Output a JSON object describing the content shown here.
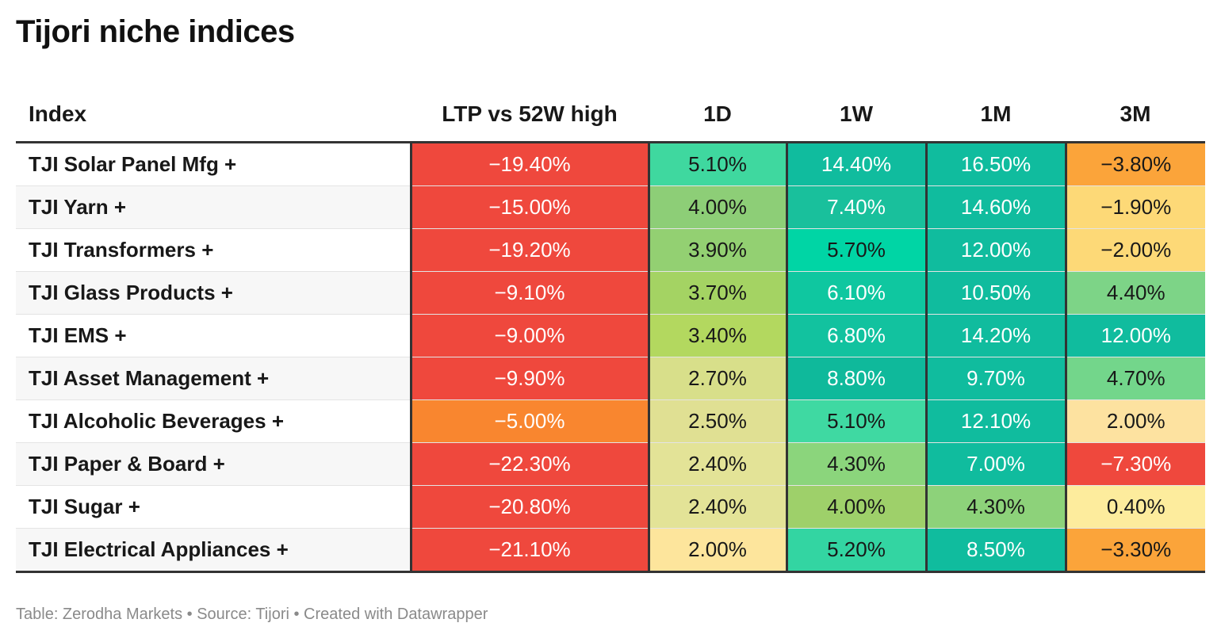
{
  "title": "Tijori niche indices",
  "footer": "Table: Zerodha Markets • Source: Tijori • Created with Datawrapper",
  "chart_data": {
    "type": "table",
    "columns": [
      "Index",
      "LTP vs 52W high",
      "1D",
      "1W",
      "1M",
      "3M"
    ],
    "rows": [
      {
        "index": "TJI Solar Panel Mfg +",
        "ltp": "−19.40%",
        "d1": "5.10%",
        "w1": "14.40%",
        "m1": "16.50%",
        "m3": "−3.80%"
      },
      {
        "index": "TJI Yarn +",
        "ltp": "−15.00%",
        "d1": "4.00%",
        "w1": "7.40%",
        "m1": "14.60%",
        "m3": "−1.90%"
      },
      {
        "index": "TJI Transformers +",
        "ltp": "−19.20%",
        "d1": "3.90%",
        "w1": "5.70%",
        "m1": "12.00%",
        "m3": "−2.00%"
      },
      {
        "index": "TJI Glass Products +",
        "ltp": "−9.10%",
        "d1": "3.70%",
        "w1": "6.10%",
        "m1": "10.50%",
        "m3": "4.40%"
      },
      {
        "index": "TJI EMS +",
        "ltp": "−9.00%",
        "d1": "3.40%",
        "w1": "6.80%",
        "m1": "14.20%",
        "m3": "12.00%"
      },
      {
        "index": "TJI Asset Management +",
        "ltp": "−9.90%",
        "d1": "2.70%",
        "w1": "8.80%",
        "m1": "9.70%",
        "m3": "4.70%"
      },
      {
        "index": "TJI Alcoholic Beverages +",
        "ltp": "−5.00%",
        "d1": "2.50%",
        "w1": "5.10%",
        "m1": "12.10%",
        "m3": "2.00%"
      },
      {
        "index": "TJI Paper & Board +",
        "ltp": "−22.30%",
        "d1": "2.40%",
        "w1": "4.30%",
        "m1": "7.00%",
        "m3": "−7.30%"
      },
      {
        "index": "TJI Sugar +",
        "ltp": "−20.80%",
        "d1": "2.40%",
        "w1": "4.00%",
        "m1": "4.30%",
        "m3": "0.40%"
      },
      {
        "index": "TJI Electrical Appliances +",
        "ltp": "−21.10%",
        "d1": "2.00%",
        "w1": "5.20%",
        "m1": "8.50%",
        "m3": "−3.30%"
      }
    ],
    "cell_colors": [
      [
        "#ef483d",
        "#3fd89f",
        "#10bc9e",
        "#10bc9e",
        "#fba43a"
      ],
      [
        "#ef483d",
        "#8dce77",
        "#19c09c",
        "#10bc9e",
        "#fdd977"
      ],
      [
        "#ef483d",
        "#93d072",
        "#00d5a5",
        "#10bc9e",
        "#fdd977"
      ],
      [
        "#ef483d",
        "#a4d363",
        "#0fc7a0",
        "#10bc9e",
        "#7dd487"
      ],
      [
        "#ef483d",
        "#b3d85f",
        "#12c29f",
        "#10bc9e",
        "#10bc9e"
      ],
      [
        "#ef483d",
        "#d8df8a",
        "#0fb99b",
        "#10bc9e",
        "#73d68b"
      ],
      [
        "#f9862f",
        "#e0e093",
        "#3fd9a2",
        "#10bc9e",
        "#fde2a0"
      ],
      [
        "#ef483d",
        "#e3e397",
        "#8bd57c",
        "#10bc9e",
        "#ef483d"
      ],
      [
        "#ef483d",
        "#e3e397",
        "#9ed06a",
        "#8dd27a",
        "#fdec9d"
      ],
      [
        "#ef483d",
        "#fde59c",
        "#33d5a2",
        "#10bc9e",
        "#fba43a"
      ]
    ],
    "text_colors": [
      [
        "#ffffff",
        "#181818",
        "#ffffff",
        "#ffffff",
        "#181818"
      ],
      [
        "#ffffff",
        "#181818",
        "#ffffff",
        "#ffffff",
        "#181818"
      ],
      [
        "#ffffff",
        "#181818",
        "#181818",
        "#ffffff",
        "#181818"
      ],
      [
        "#ffffff",
        "#181818",
        "#ffffff",
        "#ffffff",
        "#181818"
      ],
      [
        "#ffffff",
        "#181818",
        "#ffffff",
        "#ffffff",
        "#ffffff"
      ],
      [
        "#ffffff",
        "#181818",
        "#ffffff",
        "#ffffff",
        "#181818"
      ],
      [
        "#ffffff",
        "#181818",
        "#181818",
        "#ffffff",
        "#181818"
      ],
      [
        "#ffffff",
        "#181818",
        "#181818",
        "#ffffff",
        "#ffffff"
      ],
      [
        "#ffffff",
        "#181818",
        "#181818",
        "#181818",
        "#181818"
      ],
      [
        "#ffffff",
        "#181818",
        "#181818",
        "#ffffff",
        "#181818"
      ]
    ]
  }
}
